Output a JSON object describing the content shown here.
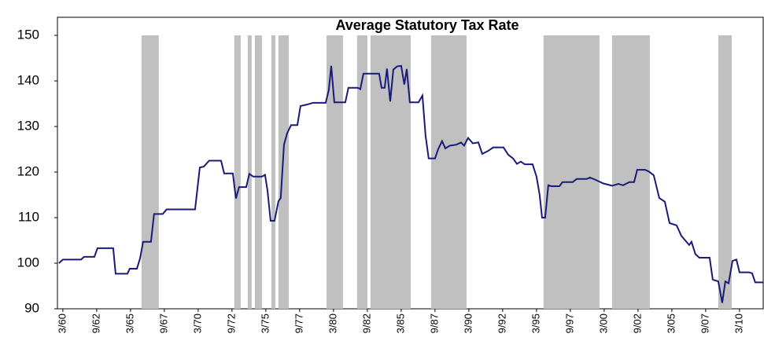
{
  "chart_data": {
    "type": "line",
    "title": "Average Statutory Tax Rate",
    "xlim": [
      1959.6,
      2011.75
    ],
    "ylim": [
      90,
      150
    ],
    "yticks": [
      90,
      100,
      110,
      120,
      130,
      140,
      150
    ],
    "xticks": [
      {
        "value": 1960.0,
        "label": "3/60"
      },
      {
        "value": 1962.5,
        "label": "9/62"
      },
      {
        "value": 1965.0,
        "label": "3/65"
      },
      {
        "value": 1967.5,
        "label": "9/67"
      },
      {
        "value": 1970.0,
        "label": "3/70"
      },
      {
        "value": 1972.5,
        "label": "9/72"
      },
      {
        "value": 1975.0,
        "label": "3/75"
      },
      {
        "value": 1977.5,
        "label": "9/77"
      },
      {
        "value": 1980.0,
        "label": "3/80"
      },
      {
        "value": 1982.5,
        "label": "9/82"
      },
      {
        "value": 1985.0,
        "label": "3/85"
      },
      {
        "value": 1987.5,
        "label": "9/87"
      },
      {
        "value": 1990.0,
        "label": "3/90"
      },
      {
        "value": 1992.5,
        "label": "9/92"
      },
      {
        "value": 1995.0,
        "label": "3/95"
      },
      {
        "value": 1997.5,
        "label": "9/97"
      },
      {
        "value": 2000.0,
        "label": "3/00"
      },
      {
        "value": 2002.5,
        "label": "9/02"
      },
      {
        "value": 2005.0,
        "label": "3/05"
      },
      {
        "value": 2007.5,
        "label": "9/07"
      },
      {
        "value": 2010.0,
        "label": "3/10"
      }
    ],
    "shaded_color": "#c0c0c0",
    "shaded_periods": [
      {
        "start": 1965.81,
        "end": 1967.09
      },
      {
        "start": 1972.67,
        "end": 1973.14
      },
      {
        "start": 1973.66,
        "end": 1973.95
      },
      {
        "start": 1974.19,
        "end": 1974.71
      },
      {
        "start": 1975.41,
        "end": 1975.7
      },
      {
        "start": 1975.93,
        "end": 1976.69
      },
      {
        "start": 1979.48,
        "end": 1980.7
      },
      {
        "start": 1981.74,
        "end": 1982.5
      },
      {
        "start": 1982.73,
        "end": 1985.7
      },
      {
        "start": 1987.21,
        "end": 1989.83
      },
      {
        "start": 1995.52,
        "end": 1999.65
      },
      {
        "start": 2000.58,
        "end": 2003.37
      },
      {
        "start": 2008.43,
        "end": 2009.42
      }
    ],
    "series": [
      {
        "color": "#1a1a7a",
        "x": [
          1959.71,
          1960.0,
          1961.34,
          1961.57,
          1962.33,
          1962.56,
          1963.72,
          1963.9,
          1964.77,
          1964.94,
          1965.47,
          1965.7,
          1965.93,
          1966.51,
          1966.74,
          1967.38,
          1967.67,
          1969.77,
          1970.12,
          1970.41,
          1970.81,
          1971.69,
          1971.92,
          1972.56,
          1972.79,
          1973.02,
          1973.55,
          1973.78,
          1974.07,
          1974.71,
          1974.94,
          1975.12,
          1975.35,
          1975.64,
          1975.93,
          1976.1,
          1976.34,
          1976.57,
          1976.86,
          1977.33,
          1977.56,
          1978.02,
          1978.49,
          1979.42,
          1979.65,
          1979.83,
          1980.06,
          1980.87,
          1981.1,
          1981.8,
          1981.98,
          1982.21,
          1983.37,
          1983.55,
          1983.78,
          1983.95,
          1984.19,
          1984.42,
          1984.71,
          1985.0,
          1985.23,
          1985.41,
          1985.64,
          1986.28,
          1986.57,
          1986.8,
          1987.03,
          1987.5,
          1987.73,
          1988.02,
          1988.26,
          1988.6,
          1989.07,
          1989.42,
          1989.65,
          1989.94,
          1990.29,
          1990.7,
          1990.99,
          1991.4,
          1991.8,
          1992.56,
          1992.91,
          1993.26,
          1993.55,
          1993.84,
          1994.13,
          1994.71,
          1995.0,
          1995.23,
          1995.41,
          1995.64,
          1995.87,
          1996.1,
          1996.69,
          1996.92,
          1997.67,
          1997.97,
          1998.72,
          1998.95,
          1999.36,
          1999.94,
          2000.58,
          2001.05,
          2001.4,
          2001.86,
          2002.21,
          2002.44,
          2003.02,
          2003.31,
          2003.66,
          2004.07,
          2004.48,
          2004.83,
          2005.35,
          2005.7,
          2005.99,
          2006.28,
          2006.45,
          2006.74,
          2007.03,
          2007.79,
          2008.02,
          2008.43,
          2008.72,
          2008.95,
          2009.19,
          2009.48,
          2009.77,
          2010.0,
          2010.7,
          2010.93,
          2011.16,
          2011.74
        ],
        "values": [
          100,
          100.8,
          100.8,
          101.4,
          101.4,
          103.3,
          103.3,
          97.7,
          97.7,
          98.8,
          98.8,
          101,
          104.7,
          104.7,
          110.8,
          110.8,
          111.8,
          111.8,
          121,
          121.2,
          122.5,
          122.5,
          119.7,
          119.7,
          114.2,
          116.7,
          116.7,
          119.6,
          119,
          119,
          119.4,
          116,
          109.3,
          109.3,
          113.6,
          114.3,
          126,
          128.5,
          130.3,
          130.3,
          134.5,
          134.8,
          135.2,
          135.2,
          138,
          143.3,
          135.3,
          135.3,
          138.5,
          138.5,
          138.2,
          141.6,
          141.6,
          138.5,
          138.5,
          142.7,
          135.5,
          142.5,
          143.2,
          143.3,
          139.2,
          142.6,
          135.3,
          135.3,
          136.8,
          128,
          123,
          123,
          125,
          126.8,
          125.2,
          125.8,
          126,
          126.5,
          125.8,
          127.5,
          126.3,
          126.5,
          124,
          124.6,
          125.4,
          125.4,
          123.8,
          123,
          121.8,
          122.3,
          121.7,
          121.7,
          119,
          115,
          110,
          110,
          117.1,
          116.9,
          116.9,
          117.8,
          117.8,
          118.5,
          118.5,
          118.8,
          118.3,
          117.5,
          117,
          117.4,
          117.1,
          117.8,
          117.8,
          120.5,
          120.5,
          120.1,
          119.3,
          114.3,
          113.5,
          108.8,
          108.3,
          106,
          105,
          104,
          104.7,
          102,
          101.2,
          101.2,
          96.4,
          96,
          91.3,
          96,
          95.6,
          100.5,
          100.8,
          98,
          98,
          97.8,
          95.8,
          95.8
        ]
      }
    ]
  }
}
